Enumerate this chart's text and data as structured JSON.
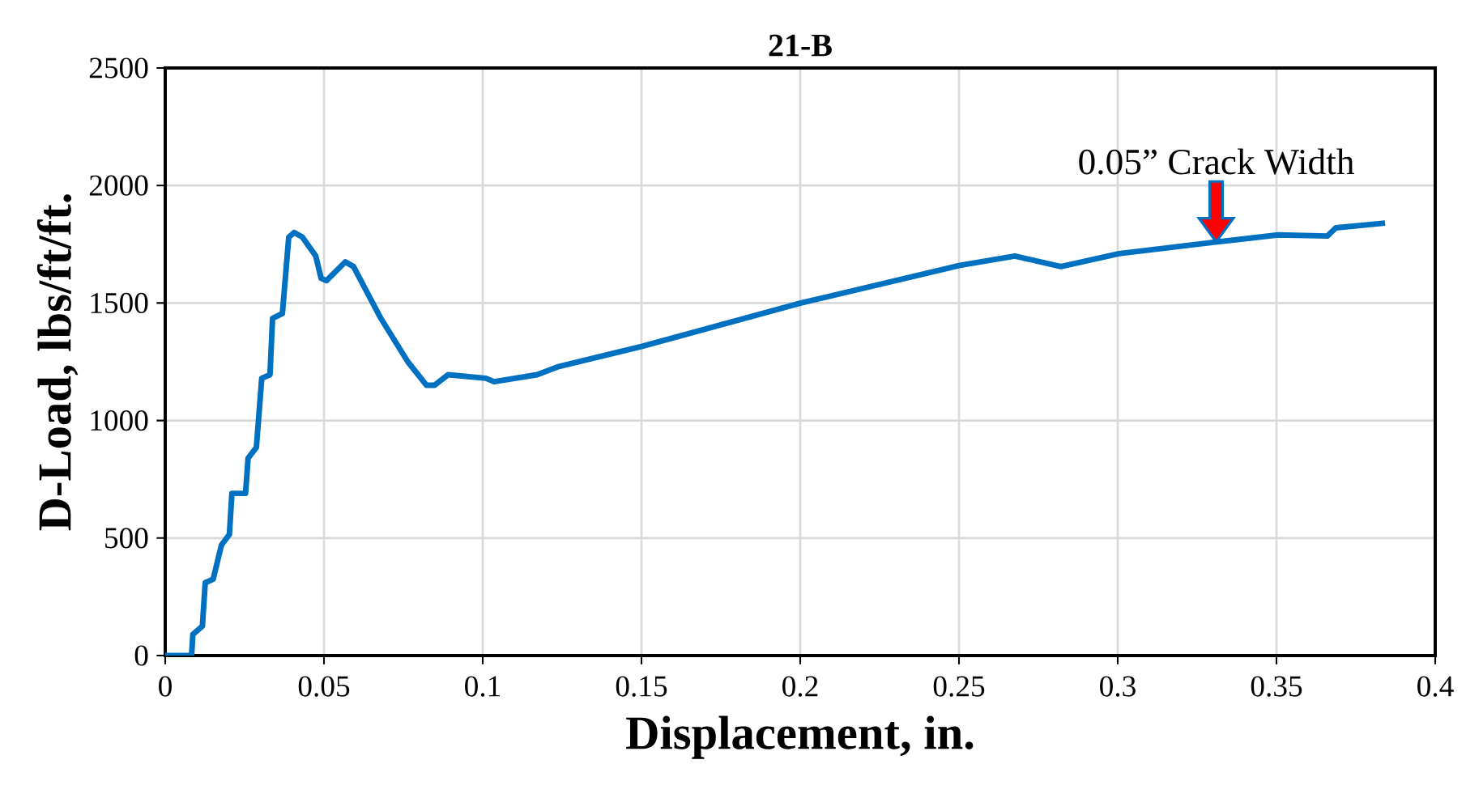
{
  "chart_data": {
    "type": "line",
    "title": "21-B",
    "xlabel": "Displacement, in.",
    "ylabel": "D-Load, lbs/ft/ft.",
    "x": [
      0,
      0.0083,
      0.0087,
      0.0117,
      0.0126,
      0.0151,
      0.0177,
      0.0202,
      0.021,
      0.0253,
      0.0261,
      0.0287,
      0.0304,
      0.033,
      0.0338,
      0.0369,
      0.0389,
      0.0406,
      0.0432,
      0.0474,
      0.0491,
      0.0508,
      0.0567,
      0.0593,
      0.0679,
      0.0764,
      0.0823,
      0.0848,
      0.0891,
      0.101,
      0.1036,
      0.1171,
      0.124,
      0.15,
      0.2002,
      0.2503,
      0.2676,
      0.2821,
      0.3004,
      0.3313,
      0.3505,
      0.366,
      0.3687,
      0.3842
    ],
    "values": [
      0,
      0,
      90,
      125,
      310,
      325,
      470,
      515,
      690,
      690,
      840,
      885,
      1180,
      1195,
      1435,
      1455,
      1780,
      1800,
      1780,
      1700,
      1605,
      1595,
      1675,
      1655,
      1435,
      1250,
      1150,
      1150,
      1195,
      1180,
      1165,
      1195,
      1230,
      1315,
      1500,
      1660,
      1700,
      1655,
      1710,
      1760,
      1790,
      1785,
      1820,
      1840
    ],
    "color": "#0070c0",
    "xlim": [
      0,
      0.4
    ],
    "ylim": [
      0,
      2500
    ],
    "xticks": [
      0,
      0.05,
      0.1,
      0.15,
      0.2,
      0.25,
      0.3,
      0.35,
      0.4
    ],
    "yticks": [
      0,
      500,
      1000,
      1500,
      2000,
      2500
    ],
    "grid": true,
    "marker": "none",
    "line_style": "solid",
    "annotations": [
      {
        "text": "0.05” Crack Width",
        "x": 0.331,
        "y": 1760
      }
    ]
  }
}
